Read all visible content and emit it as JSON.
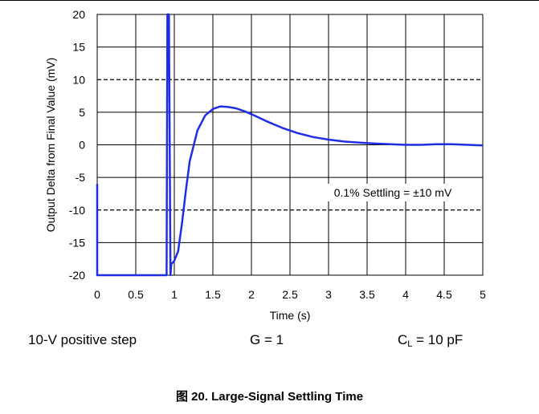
{
  "chart_data": {
    "type": "line",
    "title": "",
    "xlabel": "Time (s)",
    "ylabel": "Output Delta from Final Value (mV)",
    "xlim": [
      0,
      5
    ],
    "ylim": [
      -20,
      20
    ],
    "x_ticks": [
      "0",
      "0.5",
      "1",
      "1.5",
      "2",
      "2.5",
      "3",
      "3.5",
      "4",
      "4.5",
      "5"
    ],
    "y_ticks": [
      "20",
      "15",
      "10",
      "5",
      "0",
      "-5",
      "-10",
      "-15",
      "-20"
    ],
    "grid": true,
    "reference_lines": [
      10,
      -10
    ],
    "annotation": "0.1% Settling = ±10 mV",
    "series": [
      {
        "color": "#1f2ee6",
        "x": [
          0,
          0,
          0.01,
          0.9,
          0.91,
          0.93,
          0.95,
          0.96,
          1.0,
          1.05,
          1.1,
          1.15,
          1.2,
          1.3,
          1.4,
          1.5,
          1.6,
          1.7,
          1.8,
          1.9,
          2.0,
          2.2,
          2.4,
          2.6,
          2.8,
          3.0,
          3.2,
          3.4,
          3.6,
          3.8,
          4.0,
          4.2,
          4.4,
          4.6,
          4.8,
          5.0
        ],
        "y": [
          -6,
          -20,
          -20,
          -20,
          20,
          20,
          -20,
          -18.3,
          -17.8,
          -16.3,
          -12,
          -7,
          -2.5,
          2.2,
          4.5,
          5.5,
          5.9,
          5.8,
          5.6,
          5.2,
          4.7,
          3.6,
          2.6,
          1.8,
          1.2,
          0.8,
          0.5,
          0.35,
          0.2,
          0.1,
          0,
          0,
          0.1,
          0.1,
          0,
          -0.1
        ]
      }
    ]
  },
  "conditions": {
    "step": "10-V positive step",
    "gain": "G = 1",
    "cl_main": "C",
    "cl_sub": "L",
    "cl_value": " = 10 pF"
  },
  "caption": "图 20. Large-Signal Settling Time"
}
